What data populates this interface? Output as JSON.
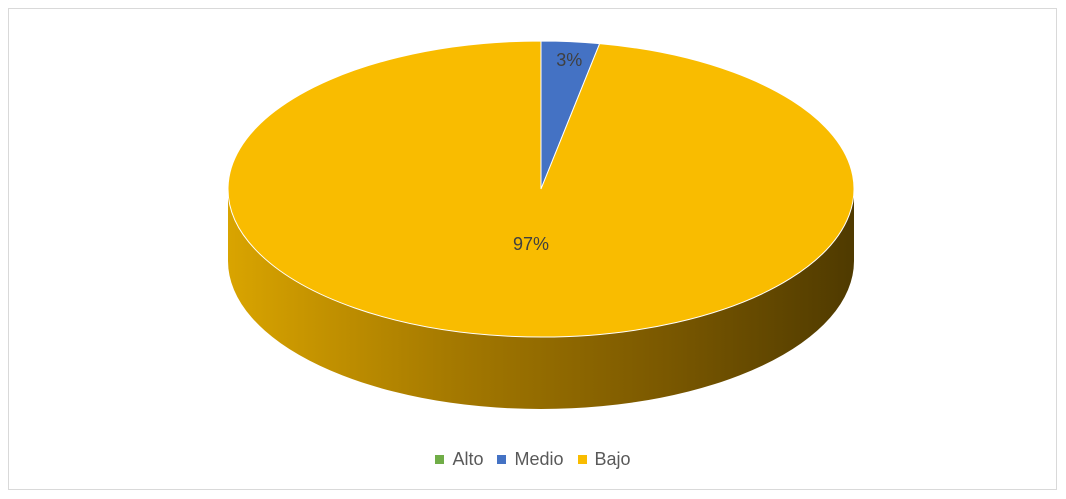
{
  "chart_data": {
    "type": "pie",
    "style": "3d",
    "categories": [
      "Alto",
      "Medio",
      "Bajo"
    ],
    "values": [
      0,
      3,
      97
    ],
    "data_labels": [
      "",
      "3%",
      "97%"
    ],
    "colors": [
      "#70ad47",
      "#4472c4",
      "#f9bc00"
    ],
    "legend": {
      "position": "bottom",
      "entries": [
        "Alto",
        "Medio",
        "Bajo"
      ]
    }
  }
}
